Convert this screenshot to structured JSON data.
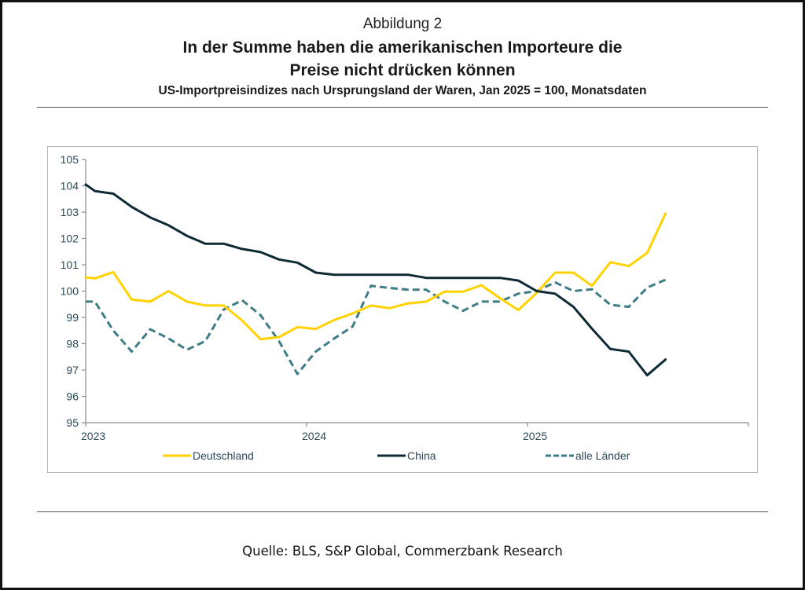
{
  "figure_label": "Abbildung 2",
  "title_line1": "In der Summe haben die amerikanischen Importeure die",
  "title_line2": "Preise nicht drücken können",
  "subtitle": "US-Importpreisindizes nach Ursprungsland der Waren, Jan 2025 = 100, Monatsdaten",
  "source": "Quelle: BLS, S&P Global, Commerzbank Research",
  "chart_data": {
    "type": "line",
    "title": "In der Summe haben die amerikanischen Importeure die Preise nicht drücken können",
    "subtitle": "US-Importpreisindizes nach Ursprungsland der Waren, Jan 2025 = 100, Monatsdaten",
    "xlabel": "",
    "ylabel": "",
    "x_unit": "months since Jan 2023 (axis start = 0, data plotted mid-month)",
    "xlim": [
      0,
      36
    ],
    "ylim": [
      95,
      105
    ],
    "y_ticks": [
      95,
      96,
      97,
      98,
      99,
      100,
      101,
      102,
      103,
      104,
      105
    ],
    "x_ticks": [
      {
        "value": 0,
        "label": "2023"
      },
      {
        "value": 12,
        "label": "2024"
      },
      {
        "value": 24,
        "label": "2025"
      },
      {
        "value": 36,
        "label": ""
      }
    ],
    "grid": false,
    "legend_position": "bottom",
    "x": [
      0,
      0.5,
      1.5,
      2.5,
      3.5,
      4.5,
      5.5,
      6.5,
      7.5,
      8.5,
      9.5,
      10.5,
      11.5,
      12.5,
      13.5,
      14.5,
      15.5,
      16.5,
      17.5,
      18.5,
      19.5,
      20.5,
      21.5,
      22.5,
      23.5,
      24.5,
      25.5,
      26.5,
      27.5,
      28.5,
      29.5,
      30.5,
      31.5
    ],
    "series": [
      {
        "name": "Deutschland",
        "color": "#FFD200",
        "style": "solid",
        "values": [
          100.52,
          100.48,
          100.72,
          99.68,
          99.6,
          100.0,
          99.6,
          99.45,
          99.45,
          98.88,
          98.17,
          98.25,
          98.63,
          98.56,
          98.9,
          99.15,
          99.45,
          99.35,
          99.53,
          99.6,
          99.98,
          99.98,
          100.22,
          99.73,
          99.28,
          99.93,
          100.7,
          100.7,
          100.2,
          101.1,
          100.95,
          101.45,
          102.95
        ]
      },
      {
        "name": "China",
        "color": "#0E2B35",
        "style": "solid",
        "values": [
          104.05,
          103.8,
          103.7,
          103.2,
          102.8,
          102.5,
          102.1,
          101.8,
          101.8,
          101.6,
          101.48,
          101.2,
          101.08,
          100.7,
          100.62,
          100.62,
          100.62,
          100.62,
          100.62,
          100.5,
          100.5,
          100.5,
          100.5,
          100.5,
          100.4,
          100.0,
          99.9,
          99.4,
          98.57,
          97.8,
          97.7,
          96.8,
          97.4
        ]
      },
      {
        "name": "alle Länder",
        "color": "#3E7C86",
        "style": "dashed",
        "values": [
          99.6,
          99.6,
          98.5,
          97.7,
          98.55,
          98.2,
          97.77,
          98.1,
          99.3,
          99.65,
          99.08,
          98.1,
          96.85,
          97.7,
          98.2,
          98.65,
          100.2,
          100.12,
          100.05,
          100.05,
          99.6,
          99.25,
          99.6,
          99.6,
          99.9,
          100.0,
          100.33,
          100.0,
          100.07,
          99.48,
          99.4,
          100.13,
          100.43
        ]
      }
    ]
  }
}
